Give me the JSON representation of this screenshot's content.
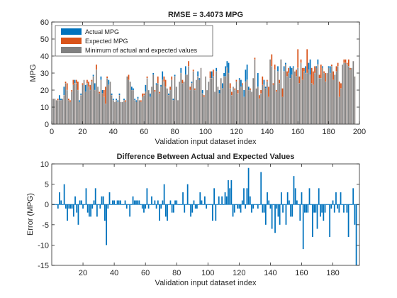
{
  "colors": {
    "actual": "#0072bd",
    "expected": "#d95319",
    "minimum": "#808080",
    "axis": "#262626"
  },
  "chart_data": [
    {
      "type": "bar",
      "title": "RMSE = 3.4073 MPG",
      "xlabel": "Validation input dataset index",
      "ylabel": "MPG",
      "xlim": [
        0,
        200
      ],
      "ylim": [
        0,
        60
      ],
      "xticks": [
        "0",
        "20",
        "40",
        "60",
        "80",
        "100",
        "120",
        "140",
        "160",
        "180",
        "200"
      ],
      "yticks": [
        "0",
        "10",
        "20",
        "30",
        "40",
        "50",
        "60"
      ],
      "legend": {
        "placement": "top-left",
        "entries": [
          "Actual MPG",
          "Expected MPG",
          "Minimum of actual and expected values"
        ]
      },
      "series": [
        {
          "name": "Actual MPG",
          "values": [
            15,
            15,
            14,
            14,
            17,
            15,
            15,
            22,
            24,
            20,
            14,
            13,
            19,
            23,
            26,
            24,
            20,
            14,
            18,
            23,
            26,
            23,
            24,
            22,
            20,
            25,
            29,
            24,
            32,
            22,
            18,
            28,
            20,
            16,
            12,
            27,
            26,
            25,
            18,
            15,
            13,
            15,
            14,
            18,
            13,
            13,
            15,
            13,
            28,
            26,
            25,
            22,
            21,
            15,
            14,
            16,
            14,
            13,
            16,
            17,
            23,
            27,
            20,
            18,
            22,
            30,
            19,
            24,
            24,
            18,
            23,
            31,
            25,
            22,
            21,
            18,
            20,
            26,
            15,
            29,
            22,
            14,
            25,
            33,
            24,
            25,
            34,
            29,
            34,
            20,
            25,
            31,
            20,
            26,
            31,
            27,
            33,
            20,
            16,
            28,
            20,
            25,
            27,
            31,
            28,
            19,
            33,
            22,
            20,
            27,
            24,
            30,
            34,
            37,
            36,
            21,
            17,
            22,
            20,
            25,
            18,
            27,
            26,
            23,
            20,
            32,
            35,
            22,
            20,
            19,
            27,
            38,
            21,
            30,
            15,
            18,
            23,
            26,
            22,
            25,
            16,
            38,
            34,
            23,
            32,
            19,
            34,
            24,
            38,
            16,
            34,
            36,
            28,
            30,
            34,
            33,
            34,
            31,
            28,
            33,
            24,
            36,
            26,
            31,
            34,
            30,
            36,
            38,
            24,
            23,
            30,
            34,
            38,
            27,
            27,
            34,
            30,
            25,
            30,
            34,
            34,
            34,
            26,
            29,
            31,
            34,
            16,
            21,
            35,
            36,
            36,
            35,
            34,
            32,
            33,
            37,
            28
          ]
        },
        {
          "name": "Expected MPG",
          "values": [
            15,
            15,
            14,
            15,
            14,
            14,
            15,
            17,
            25,
            24,
            15,
            14,
            20,
            26,
            24,
            26,
            25,
            13,
            17,
            24,
            26,
            19,
            26,
            25,
            23,
            26,
            28,
            20,
            35,
            22,
            19,
            26,
            18,
            20,
            22,
            28,
            23,
            25,
            17,
            14,
            13,
            14,
            13,
            17,
            13,
            13,
            14,
            14,
            28,
            29,
            25,
            20,
            20,
            14,
            13,
            15,
            14,
            14,
            18,
            18,
            19,
            28,
            20,
            16,
            22,
            29,
            20,
            23,
            28,
            19,
            22,
            26,
            28,
            26,
            21,
            17,
            22,
            28,
            14,
            28,
            22,
            14,
            25,
            30,
            26,
            25,
            29,
            29,
            37,
            22,
            24,
            32,
            21,
            26,
            28,
            26,
            33,
            18,
            17,
            28,
            20,
            25,
            31,
            27,
            32,
            19,
            31,
            22,
            18,
            27,
            21,
            28,
            28,
            33,
            30,
            24,
            19,
            22,
            21,
            26,
            20,
            26,
            22,
            24,
            16,
            25,
            26,
            20,
            21,
            19,
            27,
            39,
            21,
            22,
            17,
            20,
            28,
            23,
            21,
            26,
            22,
            38,
            41,
            24,
            35,
            20,
            31,
            26,
            38,
            21,
            31,
            35,
            31,
            33,
            27,
            29,
            33,
            31,
            32,
            44,
            28,
            38,
            33,
            33,
            30,
            44,
            32,
            29,
            33,
            31,
            34,
            33,
            35,
            29,
            35,
            33,
            31,
            30,
            30,
            33,
            30,
            35,
            31,
            29,
            34,
            36,
            25,
            24,
            35,
            38,
            38,
            36,
            38,
            33,
            33,
            37,
            28
          ]
        }
      ]
    },
    {
      "type": "bar",
      "title": "Difference Between Actual and Expected Values",
      "xlabel": "Validation input dataset index",
      "ylabel": "Error (MPG)",
      "xlim": [
        0,
        197
      ],
      "ylim": [
        -15,
        10
      ],
      "xticks": [
        "20",
        "40",
        "60",
        "80",
        "100",
        "120",
        "140",
        "160",
        "180"
      ],
      "yticks": [
        "-15",
        "-10",
        "-5",
        "0",
        "5",
        "10"
      ],
      "series": [
        {
          "name": "Error",
          "values": [
            0,
            0,
            0,
            -1,
            3,
            1,
            0,
            5,
            -1,
            -4,
            -1,
            -1,
            -1,
            -3,
            2,
            -2,
            -5,
            1,
            1,
            -1,
            0,
            4,
            -2,
            -3,
            -3,
            -1,
            1,
            4,
            -3,
            0,
            -1,
            2,
            2,
            -4,
            -10,
            -1,
            3,
            0,
            1,
            1,
            0,
            1,
            1,
            1,
            0,
            0,
            1,
            -1,
            0,
            -3,
            0,
            2,
            1,
            1,
            1,
            1,
            0,
            -1,
            -2,
            -1,
            4,
            -1,
            0,
            2,
            0,
            1,
            -1,
            1,
            -4,
            -1,
            1,
            5,
            -3,
            -4,
            0,
            1,
            -2,
            -2,
            1,
            1,
            0,
            0,
            0,
            3,
            -2,
            0,
            5,
            0,
            -3,
            -2,
            1,
            -1,
            -1,
            0,
            3,
            1,
            0,
            2,
            -1,
            0,
            0,
            0,
            -4,
            4,
            -4,
            0,
            2,
            0,
            2,
            0,
            3,
            2,
            6,
            4,
            6,
            -3,
            -2,
            0,
            -1,
            -1,
            -2,
            1,
            4,
            -1,
            4,
            9,
            2,
            -2,
            -1,
            0,
            0,
            -1,
            0,
            8,
            -2,
            -2,
            -5,
            3,
            1,
            -1,
            -6,
            0,
            -7,
            -1,
            -3,
            -5,
            3,
            -2,
            0,
            -5,
            3,
            1,
            -3,
            -3,
            7,
            4,
            1,
            0,
            -4,
            3,
            -11,
            -2,
            -2,
            -2,
            4,
            0,
            -8,
            -2,
            -2,
            -6,
            4,
            -3,
            -2,
            -4,
            -2,
            0,
            0,
            -8,
            -1,
            1,
            -2,
            3,
            -1,
            -2,
            3,
            0,
            -2,
            0,
            -2,
            -8,
            0,
            0,
            4,
            -5,
            -15,
            0
          ]
        }
      ]
    }
  ]
}
